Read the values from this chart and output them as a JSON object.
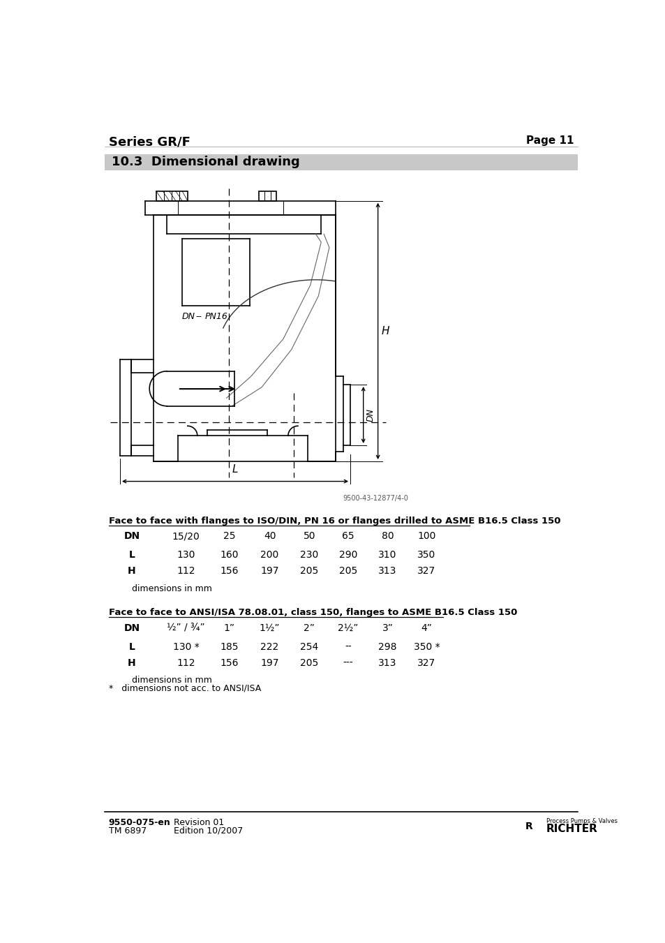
{
  "title_left": "Series GR/F",
  "title_right": "Page 11",
  "section_title": "10.3  Dimensional drawing",
  "section_bg": "#c8c8c8",
  "drawing_ref": "9500-43-12877/4-0",
  "table1_title": "Face to face with flanges to ISO/DIN, PN 16 or flanges drilled to ASME B16.5 Class 150",
  "table1_headers": [
    "DN",
    "15/20",
    "25",
    "40",
    "50",
    "65",
    "80",
    "100"
  ],
  "table1_L": [
    "L",
    "130",
    "160",
    "200",
    "230",
    "290",
    "310",
    "350"
  ],
  "table1_H": [
    "H",
    "112",
    "156",
    "197",
    "205",
    "205",
    "313",
    "327"
  ],
  "table1_note": "dimensions in mm",
  "table2_title": "Face to face to ANSI/ISA 78.08.01, class 150, flanges to ASME B16.5 Class 150",
  "table2_headers": [
    "DN",
    "½” / ¾”",
    "1”",
    "1½”",
    "2”",
    "2½”",
    "3”",
    "4”"
  ],
  "table2_L": [
    "L",
    "130 *",
    "185",
    "222",
    "254",
    "--",
    "298",
    "350 *"
  ],
  "table2_H": [
    "H",
    "112",
    "156",
    "197",
    "205",
    "---",
    "313",
    "327"
  ],
  "table2_note1": "dimensions in mm",
  "table2_note2": "*   dimensions not acc. to ANSI/ISA",
  "footer_left1": "9550-075-en",
  "footer_left2": "TM 6897",
  "footer_right1": "Revision 01",
  "footer_right2": "Edition 10/2007",
  "bg_color": "#ffffff",
  "text_color": "#000000",
  "line_color": "#000000"
}
